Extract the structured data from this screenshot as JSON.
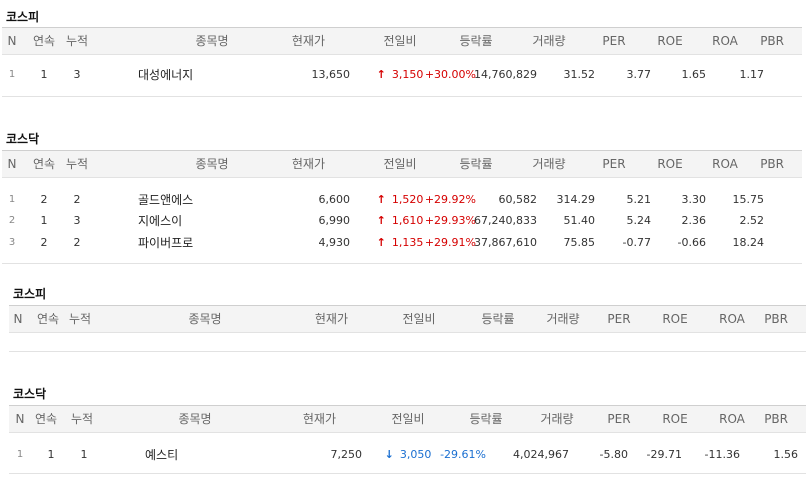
{
  "headers": [
    "N",
    "연속",
    "누적",
    "종목명",
    "현재가",
    "전일비",
    "등락률",
    "거래량",
    "PER",
    "ROE",
    "ROA",
    "PBR"
  ],
  "sections": [
    {
      "title": "코스피",
      "rows": [
        {
          "n": "1",
          "streak": "1",
          "total": "3",
          "name": "대성에너지",
          "price": "13,650",
          "dir": "up",
          "change": "3,150",
          "rate": "+30.00%",
          "volume": "14,760,829",
          "per": "31.52",
          "roe": "3.77",
          "roa": "1.65",
          "pbr": "1.17"
        }
      ]
    },
    {
      "title": "코스닥",
      "rows": [
        {
          "n": "1",
          "streak": "2",
          "total": "2",
          "name": "골드앤에스",
          "price": "6,600",
          "dir": "up",
          "change": "1,520",
          "rate": "+29.92%",
          "volume": "60,582",
          "per": "314.29",
          "roe": "5.21",
          "roa": "3.30",
          "pbr": "15.75"
        },
        {
          "n": "2",
          "streak": "1",
          "total": "3",
          "name": "지에스이",
          "price": "6,990",
          "dir": "up",
          "change": "1,610",
          "rate": "+29.93%",
          "volume": "67,240,833",
          "per": "51.40",
          "roe": "5.24",
          "roa": "2.36",
          "pbr": "2.52"
        },
        {
          "n": "3",
          "streak": "2",
          "total": "2",
          "name": "파이버프로",
          "price": "4,930",
          "dir": "up",
          "change": "1,135",
          "rate": "+29.91%",
          "volume": "37,867,610",
          "per": "75.85",
          "roe": "-0.77",
          "roa": "-0.66",
          "pbr": "18.24"
        }
      ]
    },
    {
      "title": "코스피",
      "rows": []
    },
    {
      "title": "코스닥",
      "rows": [
        {
          "n": "1",
          "streak": "1",
          "total": "1",
          "name": "예스티",
          "price": "7,250",
          "dir": "down",
          "change": "3,050",
          "rate": "-29.61%",
          "volume": "4,024,967",
          "per": "-5.80",
          "roe": "-29.71",
          "roa": "-11.36",
          "pbr": "1.56"
        }
      ]
    }
  ],
  "colors": {
    "up": "#d50000",
    "down": "#1a6fd1"
  }
}
